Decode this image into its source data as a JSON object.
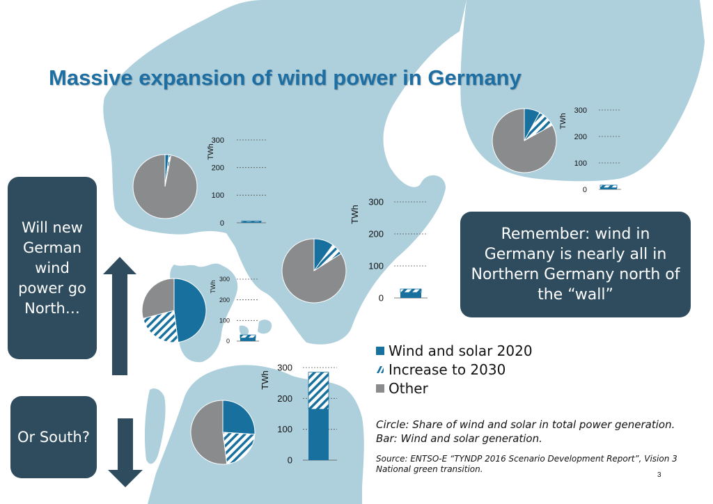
{
  "title": "Massive expansion of wind power in Germany",
  "boxes": {
    "north": "Will new German wind power go North…",
    "south": "Or South?",
    "remember": "Remember: wind in Germany is nearly all in Northern Germany north of the “wall”"
  },
  "legend": [
    {
      "label": "Wind and solar 2020",
      "style": "solid"
    },
    {
      "label": "Increase to 2030",
      "style": "hatched"
    },
    {
      "label": "Other",
      "style": "grey"
    }
  ],
  "notes": {
    "line1": "Circle: Share of wind and solar in total power generation.",
    "line2": "Bar: Wind and solar generation."
  },
  "source": {
    "line1": "Source: ENTSO-E “TYNDP 2016 Scenario Development Report”, Vision 3",
    "line2": "National green transition."
  },
  "page_number": "3",
  "colors": {
    "sea": "#ffffff",
    "land": "#aecfdc",
    "wind_solar": "#17709e",
    "other": "#8a8b8c",
    "box": "#2e4c5e",
    "title": "#1d6fa3",
    "arrow": "#2e4c5e"
  },
  "chart_data": [
    {
      "type": "pie",
      "region": "Norway",
      "slices": [
        {
          "name": "Wind and solar 2020",
          "value": 2
        },
        {
          "name": "Increase to 2030",
          "value": 1
        },
        {
          "name": "Other",
          "value": 97
        }
      ]
    },
    {
      "type": "bar",
      "region": "Norway",
      "ylabel": "TWh",
      "yticks": [
        0,
        100,
        200,
        300
      ],
      "ylim": [
        0,
        300
      ],
      "series": [
        {
          "name": "Wind and solar 2020",
          "values": [
            3
          ]
        },
        {
          "name": "Increase to 2030",
          "values": [
            3
          ]
        }
      ]
    },
    {
      "type": "pie",
      "region": "Sweden",
      "slices": [
        {
          "name": "Wind and solar 2020",
          "value": 10
        },
        {
          "name": "Increase to 2030",
          "value": 6
        },
        {
          "name": "Other",
          "value": 84
        }
      ]
    },
    {
      "type": "bar",
      "region": "Sweden",
      "ylabel": "TWh",
      "yticks": [
        0,
        100,
        200,
        300
      ],
      "ylim": [
        0,
        300
      ],
      "series": [
        {
          "name": "Wind and solar 2020",
          "values": [
            17
          ]
        },
        {
          "name": "Increase to 2030",
          "values": [
            11
          ]
        }
      ]
    },
    {
      "type": "pie",
      "region": "Finland",
      "slices": [
        {
          "name": "Wind and solar 2020",
          "value": 8
        },
        {
          "name": "Increase to 2030",
          "value": 9
        },
        {
          "name": "Other",
          "value": 83
        }
      ]
    },
    {
      "type": "bar",
      "region": "Finland",
      "ylabel": "TWh",
      "yticks": [
        0,
        100,
        200,
        300
      ],
      "ylim": [
        0,
        300
      ],
      "series": [
        {
          "name": "Wind and solar 2020",
          "values": [
            6
          ]
        },
        {
          "name": "Increase to 2030",
          "values": [
            10
          ]
        }
      ]
    },
    {
      "type": "pie",
      "region": "Denmark",
      "slices": [
        {
          "name": "Wind and solar 2020",
          "value": 48
        },
        {
          "name": "Increase to 2030",
          "value": 23
        },
        {
          "name": "Other",
          "value": 29
        }
      ]
    },
    {
      "type": "bar",
      "region": "Denmark",
      "ylabel": "TWh",
      "yticks": [
        0,
        100,
        200,
        300
      ],
      "ylim": [
        0,
        300
      ],
      "series": [
        {
          "name": "Wind and solar 2020",
          "values": [
            15
          ]
        },
        {
          "name": "Increase to 2030",
          "values": [
            15
          ]
        }
      ]
    },
    {
      "type": "pie",
      "region": "Germany",
      "slices": [
        {
          "name": "Wind and solar 2020",
          "value": 26
        },
        {
          "name": "Increase to 2030",
          "value": 22
        },
        {
          "name": "Other",
          "value": 52
        }
      ]
    },
    {
      "type": "bar",
      "region": "Germany",
      "ylabel": "TWh",
      "yticks": [
        0,
        100,
        200,
        300
      ],
      "ylim": [
        0,
        300
      ],
      "series": [
        {
          "name": "Wind and solar 2020",
          "values": [
            165
          ]
        },
        {
          "name": "Increase to 2030",
          "values": [
            120
          ]
        }
      ]
    }
  ]
}
